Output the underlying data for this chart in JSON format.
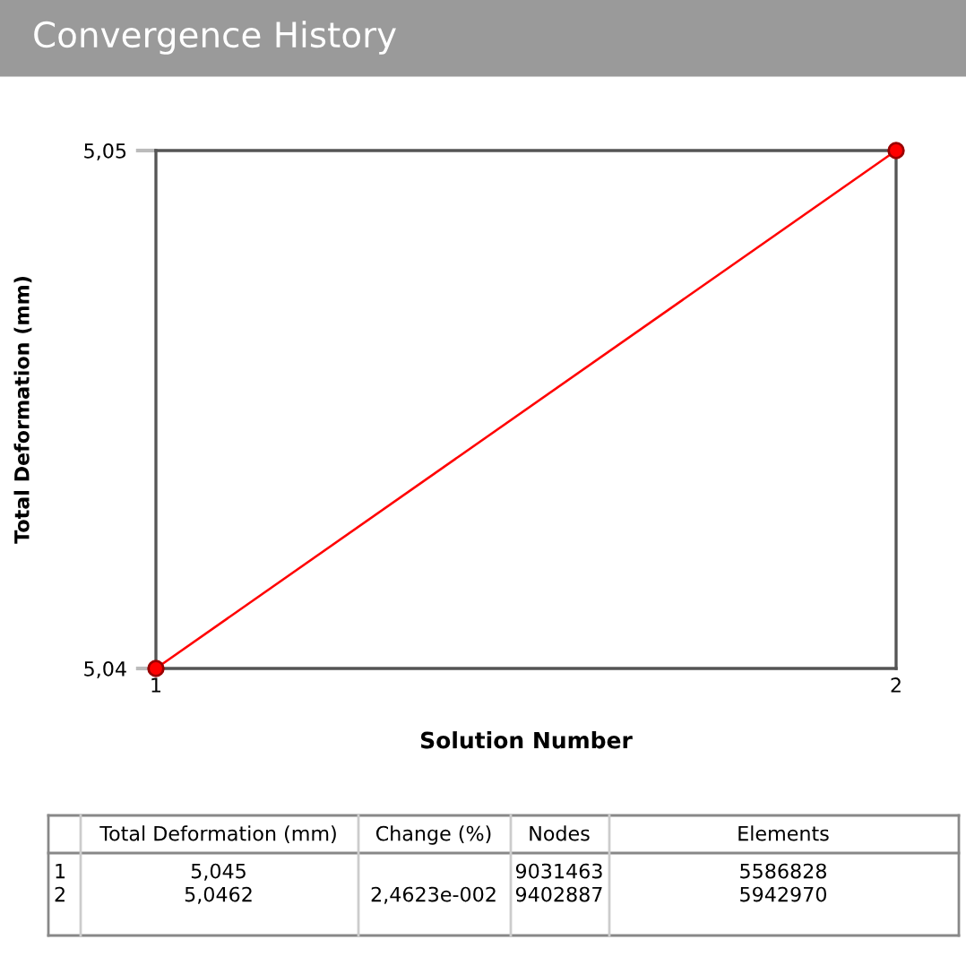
{
  "chart_data": {
    "type": "line",
    "title": "Convergence History",
    "xlabel": "Solution Number",
    "ylabel": "Total Deformation (mm)",
    "x": [
      1,
      2
    ],
    "series": [
      {
        "color": "#ff0000",
        "values": [
          5.045,
          5.0462
        ]
      }
    ],
    "marker": "circle",
    "xlim": [
      1,
      2
    ],
    "xticks": [
      1,
      2
    ],
    "ylim": [
      5.045,
      5.0462
    ],
    "yticks": [
      {
        "value": 5.045,
        "label": "5,04"
      },
      {
        "value": 5.0462,
        "label": "5,05"
      }
    ],
    "annotations": [
      "Total Deformation (mm)",
      "Change (%)",
      "Nodes",
      "Elements",
      "1",
      "5,045",
      "9031463",
      "5586828",
      "2",
      "5,0462",
      "2,4623e-002",
      "9402887",
      "5942970"
    ]
  }
}
